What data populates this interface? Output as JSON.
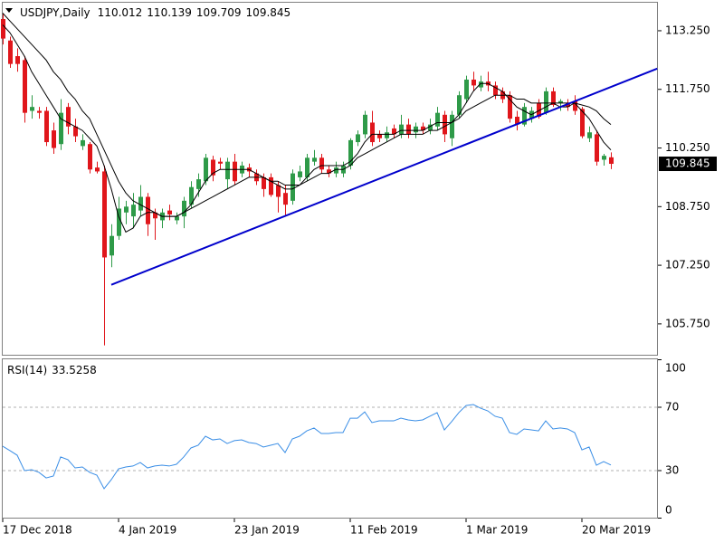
{
  "chart_data": [
    {
      "type": "candlestick",
      "title": "USDJPY,Daily",
      "categories": [
        "17 Dec 2018",
        null,
        null,
        null,
        null,
        null,
        null,
        null,
        null,
        null,
        null,
        null,
        null,
        null,
        null,
        null,
        "4 Jan 2019",
        null,
        null,
        null,
        null,
        null,
        null,
        null,
        null,
        null,
        null,
        null,
        null,
        null,
        null,
        null,
        "23 Jan 2019",
        null,
        null,
        null,
        null,
        null,
        null,
        null,
        null,
        null,
        null,
        null,
        null,
        null,
        null,
        null,
        "11 Feb 2019",
        null,
        null,
        null,
        null,
        null,
        null,
        null,
        null,
        null,
        null,
        null,
        null,
        null,
        null,
        null,
        "1 Mar 2019",
        null,
        null,
        null,
        null,
        null,
        null,
        null,
        null,
        null,
        null,
        null,
        null,
        null,
        null,
        null,
        "20 Mar 2019",
        null,
        null,
        null,
        null
      ],
      "open": [
        113.55,
        113.0,
        112.6,
        112.5,
        111.2,
        111.2,
        111.2,
        110.7,
        110.35,
        111.3,
        110.8,
        110.3,
        110.35,
        109.75,
        109.65,
        107.5,
        108.0,
        108.6,
        108.5,
        108.65,
        109.0,
        108.6,
        108.4,
        108.65,
        108.4,
        108.5,
        108.8,
        109.2,
        109.4,
        109.95,
        109.9,
        109.45,
        109.9,
        109.6,
        109.75,
        109.6,
        109.5,
        109.5,
        109.3,
        109.1,
        108.9,
        109.5,
        109.5,
        109.9,
        110.0,
        109.7,
        109.6,
        109.6,
        109.8,
        110.4,
        110.6,
        110.9,
        110.6,
        110.5,
        110.75,
        110.6,
        110.85,
        110.65,
        110.8,
        110.7,
        110.8,
        111.1,
        110.5,
        111.1,
        111.5,
        112.0,
        111.8,
        111.95,
        111.85,
        111.7,
        111.6,
        111.05,
        110.85,
        111.0,
        111.4,
        111.15,
        111.7,
        111.4,
        111.4,
        111.45,
        111.25,
        110.5,
        110.6,
        109.95,
        110.012
      ],
      "high": [
        113.7,
        113.1,
        112.8,
        112.6,
        111.6,
        111.3,
        111.3,
        110.9,
        111.5,
        111.4,
        111.0,
        110.6,
        110.4,
        109.9,
        109.8,
        108.3,
        109.0,
        108.9,
        109.1,
        109.3,
        109.1,
        108.7,
        108.7,
        108.8,
        108.6,
        109.0,
        109.4,
        109.6,
        110.1,
        110.05,
        110.0,
        110.0,
        110.1,
        109.9,
        109.85,
        109.7,
        109.6,
        109.6,
        109.4,
        109.3,
        109.7,
        109.8,
        110.1,
        110.2,
        110.1,
        109.8,
        109.9,
        109.9,
        110.5,
        110.7,
        111.2,
        111.2,
        110.7,
        110.8,
        110.85,
        111.1,
        111.0,
        110.9,
        110.9,
        111.0,
        111.3,
        111.2,
        111.2,
        111.7,
        112.1,
        112.2,
        112.1,
        112.2,
        111.95,
        111.8,
        111.7,
        111.2,
        111.4,
        111.3,
        111.5,
        111.8,
        111.8,
        111.5,
        111.5,
        111.6,
        111.3,
        110.8,
        110.7,
        110.1,
        110.139
      ],
      "low": [
        112.9,
        112.3,
        112.2,
        110.9,
        111.0,
        111.0,
        110.3,
        110.1,
        110.2,
        110.6,
        110.4,
        110.2,
        109.6,
        109.6,
        105.2,
        107.2,
        107.9,
        108.3,
        108.2,
        108.5,
        108.0,
        107.9,
        108.2,
        108.4,
        108.3,
        108.2,
        108.7,
        109.0,
        109.3,
        109.4,
        109.7,
        109.2,
        109.3,
        109.5,
        109.5,
        109.3,
        109.0,
        109.0,
        108.6,
        108.5,
        108.8,
        109.4,
        109.4,
        109.8,
        109.6,
        109.5,
        109.5,
        109.5,
        109.7,
        110.3,
        110.5,
        110.3,
        110.4,
        110.4,
        110.5,
        110.5,
        110.5,
        110.5,
        110.6,
        110.6,
        110.7,
        110.4,
        110.3,
        111.0,
        111.4,
        111.7,
        111.7,
        111.7,
        111.5,
        111.4,
        110.9,
        110.7,
        110.8,
        110.9,
        111.0,
        111.1,
        111.3,
        111.2,
        111.2,
        111.1,
        110.5,
        110.4,
        109.8,
        109.8,
        109.709
      ],
      "close": [
        113.05,
        112.4,
        112.4,
        111.15,
        111.3,
        111.15,
        110.4,
        110.25,
        111.15,
        110.8,
        110.55,
        110.45,
        109.7,
        109.65,
        107.45,
        108.0,
        108.7,
        108.75,
        108.8,
        109.0,
        108.3,
        108.45,
        108.6,
        108.55,
        108.5,
        108.9,
        109.25,
        109.45,
        110.0,
        109.55,
        109.85,
        109.9,
        109.4,
        109.8,
        109.65,
        109.4,
        109.2,
        109.05,
        109.0,
        108.8,
        109.6,
        109.65,
        110.0,
        110.0,
        109.7,
        109.6,
        109.75,
        109.8,
        110.45,
        110.6,
        111.1,
        110.4,
        110.5,
        110.65,
        110.6,
        110.85,
        110.6,
        110.8,
        110.7,
        110.85,
        111.15,
        110.6,
        111.1,
        111.6,
        112.0,
        111.85,
        111.95,
        111.85,
        111.6,
        111.5,
        111.0,
        110.85,
        111.3,
        111.2,
        111.05,
        111.7,
        111.35,
        111.45,
        111.3,
        111.2,
        110.55,
        110.65,
        109.9,
        110.05,
        109.845
      ],
      "up_color": "#2e9a48",
      "down_color": "#e0161b",
      "moving_averages": [
        {
          "color": "#000000",
          "values": [
            113.4,
            113.2,
            112.9,
            112.6,
            112.2,
            111.9,
            111.6,
            111.3,
            111.0,
            110.9,
            110.8,
            110.7,
            110.5,
            110.3,
            109.8,
            109.2,
            108.5,
            108.1,
            108.2,
            108.5,
            108.6,
            108.6,
            108.5,
            108.5,
            108.5,
            108.6,
            108.8,
            109.1,
            109.4,
            109.6,
            109.7,
            109.7,
            109.7,
            109.7,
            109.7,
            109.6,
            109.5,
            109.4,
            109.3,
            109.2,
            109.2,
            109.3,
            109.5,
            109.7,
            109.8,
            109.8,
            109.8,
            109.8,
            109.9,
            110.1,
            110.4,
            110.6,
            110.6,
            110.6,
            110.6,
            110.7,
            110.7,
            110.7,
            110.7,
            110.8,
            110.9,
            110.9,
            110.9,
            111.1,
            111.4,
            111.7,
            111.9,
            111.9,
            111.8,
            111.7,
            111.5,
            111.3,
            111.2,
            111.1,
            111.2,
            111.3,
            111.4,
            111.4,
            111.4,
            111.4,
            111.2,
            111.0,
            110.7,
            110.4,
            110.2
          ]
        },
        {
          "color": "#000000",
          "values": [
            113.7,
            113.5,
            113.3,
            113.1,
            112.9,
            112.7,
            112.5,
            112.2,
            112.0,
            111.7,
            111.5,
            111.2,
            111.0,
            110.6,
            110.2,
            109.8,
            109.4,
            109.1,
            108.9,
            108.8,
            108.7,
            108.6,
            108.5,
            108.5,
            108.5,
            108.6,
            108.7,
            108.8,
            108.9,
            109.0,
            109.1,
            109.2,
            109.3,
            109.4,
            109.5,
            109.5,
            109.5,
            109.4,
            109.4,
            109.3,
            109.3,
            109.3,
            109.4,
            109.5,
            109.6,
            109.6,
            109.7,
            109.7,
            109.8,
            110.0,
            110.1,
            110.2,
            110.3,
            110.4,
            110.5,
            110.6,
            110.6,
            110.6,
            110.6,
            110.7,
            110.7,
            110.8,
            110.9,
            111.0,
            111.2,
            111.3,
            111.4,
            111.5,
            111.6,
            111.6,
            111.6,
            111.5,
            111.5,
            111.4,
            111.4,
            111.4,
            111.4,
            111.3,
            111.3,
            111.4,
            111.35,
            111.3,
            111.2,
            111.0,
            110.85
          ]
        }
      ],
      "trendline": {
        "x": [
          15,
          90.4
        ],
        "y": [
          106.75,
          112.28
        ],
        "color": "#0000cc"
      },
      "ylim": [
        104.96,
        113.99
      ],
      "yticks": [
        {
          "value": 113.25,
          "label": "113.250"
        },
        {
          "value": 111.75,
          "label": "111.750"
        },
        {
          "value": 110.25,
          "label": "110.250"
        },
        {
          "value": 108.75,
          "label": "108.750"
        },
        {
          "value": 107.25,
          "label": "107.250"
        },
        {
          "value": 105.75,
          "label": "105.750"
        }
      ]
    },
    {
      "type": "line",
      "title": "RSI(14)",
      "color": "#3a8ee6",
      "values": [
        45.4,
        42.6,
        39.7,
        30,
        30.6,
        28.9,
        25.4,
        26.6,
        38.6,
        36.9,
        31.7,
        32.3,
        28.9,
        27.1,
        18.6,
        24.3,
        31.1,
        32.3,
        32.9,
        35.1,
        31.7,
        32.9,
        33.4,
        32.9,
        34,
        38.6,
        44.3,
        46,
        51.7,
        49.4,
        50,
        47.1,
        48.9,
        49.4,
        47.7,
        47.1,
        44.9,
        46,
        47.1,
        41.4,
        50,
        51.7,
        55.1,
        56.9,
        53.4,
        53.4,
        54,
        54,
        63.1,
        63.1,
        67.1,
        60.3,
        61.4,
        61.4,
        61.4,
        63.1,
        62,
        61.4,
        62,
        64.3,
        66.6,
        55.7,
        60.9,
        66.6,
        71.1,
        71.7,
        69.4,
        67.7,
        64.3,
        63.1,
        54,
        52.9,
        56.3,
        55.7,
        55.1,
        61.4,
        56.3,
        56.9,
        56.3,
        54,
        43.1,
        44.9,
        33.4,
        35.7,
        33.5258
      ],
      "ylim": [
        0,
        100
      ],
      "yticks": [
        100,
        70,
        30,
        0
      ],
      "levels": [
        70,
        30
      ]
    }
  ]
}
